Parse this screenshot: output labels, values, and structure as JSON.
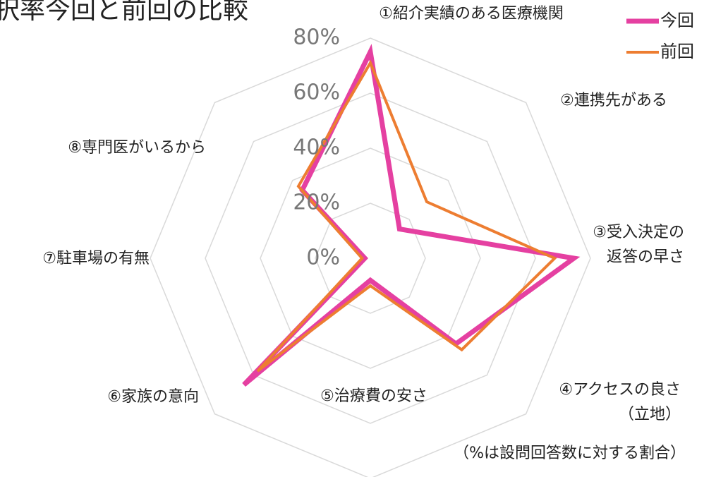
{
  "chart_data": {
    "type": "radar",
    "title": "択率今回と前回の比較",
    "categories": [
      "①紹介実績のある医療機関",
      "②連携先がある",
      "③受入決定の\n返答の早さ",
      "④アクセスの良さ\n（立地）",
      "⑤治療費の安さ",
      "⑥家族の意向",
      "⑦駐車場の有無",
      "⑧専門医がいるから"
    ],
    "series": [
      {
        "name": "今回",
        "color": "#e540a1",
        "values": [
          75,
          15,
          74,
          44,
          8,
          65,
          2,
          35
        ]
      },
      {
        "name": "前回",
        "color": "#ed7d31",
        "values": [
          71,
          29,
          67,
          47,
          10,
          58,
          3,
          37
        ]
      }
    ],
    "ylim": [
      0,
      80
    ],
    "yticks": [
      {
        "value": 0,
        "label": "0%"
      },
      {
        "value": 20,
        "label": "20%"
      },
      {
        "value": 40,
        "label": "40%"
      },
      {
        "value": 60,
        "label": "60%"
      },
      {
        "value": 80,
        "label": "80%"
      }
    ],
    "grid": true,
    "legend": "top-right",
    "annotation": "（%は設問回答数に対する割合）"
  }
}
